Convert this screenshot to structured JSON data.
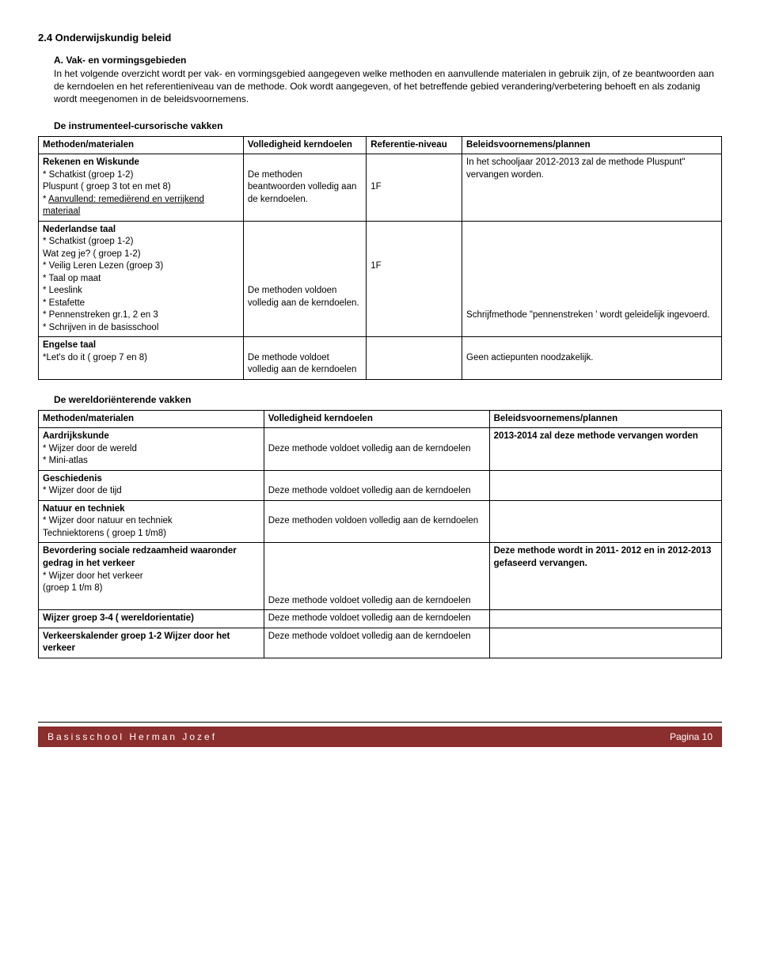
{
  "header": {
    "section_number_title": "2.4 Onderwijskundig beleid",
    "sub_title": "A. Vak- en vormingsgebieden",
    "intro_text": "In het volgende overzicht wordt per vak- en vormingsgebied aangegeven welke methoden en aanvullende materialen in gebruik zijn, of ze beantwoorden aan de kerndoelen en het referentieniveau van de methode. Ook wordt aangegeven, of het betreffende gebied verandering/verbetering behoeft en als zodanig wordt meegenomen in de beleidsvoornemens."
  },
  "table1": {
    "heading": "De instrumenteel-cursorische vakken",
    "headers": {
      "c1": "Methoden/materialen",
      "c2": "Volledigheid kerndoelen",
      "c3": "Referentie-niveau",
      "c4": "Beleidsvoornemens/plannen"
    },
    "row1": {
      "c1_title": "Rekenen en Wiskunde",
      "c1_l1": "* Schatkist (groep 1-2)",
      "c1_l2": "  Pluspunt ( groep 3 tot en met 8)",
      "c1_l3a": "* ",
      "c1_l3b": "Aanvullend: remediërend en verrijkend materiaal",
      "c2": "De methoden beantwoorden volledig aan de kerndoelen.",
      "c3": "1F",
      "c4": "In het schooljaar 2012-2013 zal de methode Pluspunt\" vervangen worden."
    },
    "row2": {
      "c1_title": "Nederlandse taal",
      "c1_l1": "* Schatkist (groep 1-2)",
      "c1_l2": "  Wat zeg je? ( groep 1-2)",
      "c1_l3": "* Veilig Leren Lezen (groep 3)",
      "c1_l4": "* Taal op maat",
      "c1_l5": "* Leeslink",
      "c1_l6": "* Estafette",
      "c1_l7": "* Pennenstreken gr.1, 2 en 3",
      "c1_l8": "* Schrijven in de basisschool",
      "c2": "De methoden voldoen volledig aan de kerndoelen.",
      "c3": "1F",
      "c4": "Schrijfmethode \"pennenstreken ' wordt geleidelijk ingevoerd."
    },
    "row3": {
      "c1_title": "Engelse taal",
      "c1_l1": "*Let's do it ( groep 7 en 8)",
      "c2": "De methode voldoet volledig aan de kerndoelen",
      "c4": "Geen actiepunten noodzakelijk."
    }
  },
  "table2": {
    "heading": "De wereldoriënterende vakken",
    "headers": {
      "c1": "Methoden/materialen",
      "c2": "Volledigheid kerndoelen",
      "c3": "Beleidsvoornemens/plannen"
    },
    "row1": {
      "c1_title": "Aardrijkskunde",
      "c1_l1": "* Wijzer door de wereld",
      "c1_l2": "* Mini-atlas",
      "c2": "Deze methode voldoet volledig aan de kerndoelen",
      "c3": "2013-2014 zal deze methode vervangen worden"
    },
    "row2": {
      "c1_title": "Geschiedenis",
      "c1_l1": "* Wijzer door de tijd",
      "c2": "Deze methode voldoet volledig aan de kerndoelen"
    },
    "row3": {
      "c1_title": "Natuur en techniek",
      "c1_l1": "* Wijzer door natuur en techniek",
      "c1_l2": "  Techniektorens ( groep 1 t/m8)",
      "c2": "Deze methoden voldoen volledig aan de kerndoelen"
    },
    "row4": {
      "c1_title": "Bevordering sociale redzaamheid waaronder gedrag in het verkeer",
      "c1_l1": "* Wijzer door het verkeer",
      "c1_l2": "  (groep 1 t/m 8)",
      "c2": "Deze methode voldoet volledig aan de kerndoelen",
      "c3": "Deze methode wordt in 2011- 2012 en in 2012-2013 gefaseerd vervangen."
    },
    "row5": {
      "c1_title": "Wijzer groep 3-4 ( wereldorientatie)",
      "c2": "Deze methode voldoet volledig aan de kerndoelen"
    },
    "row6": {
      "c1_title": "Verkeerskalender groep 1-2 Wijzer door het verkeer",
      "c2": "Deze methode voldoet volledig aan de kerndoelen"
    }
  },
  "footer": {
    "left": "Basisschool Herman Jozef",
    "right": "Pagina 10"
  }
}
